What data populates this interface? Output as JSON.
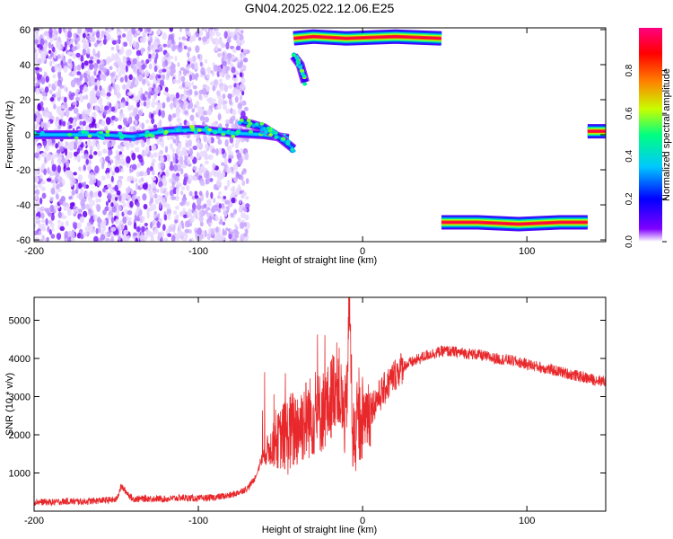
{
  "title": "GN04.2025.022.12.06.E25",
  "chart_data": [
    {
      "type": "heatmap",
      "xlabel": "Height of straight line (km)",
      "ylabel": "Frequency (Hz)",
      "xlim": [
        -200,
        148
      ],
      "ylim": [
        -61,
        61
      ],
      "xticks": [
        -200,
        -100,
        0,
        100
      ],
      "yticks": [
        -60,
        -40,
        -20,
        0,
        20,
        40,
        60
      ],
      "colorbar": {
        "label": "Normalized spectral amplitude",
        "range": [
          0,
          1
        ],
        "ticks": [
          0.0,
          0.2,
          0.4,
          0.6,
          0.8
        ],
        "colors": [
          "#ffffff",
          "#8000ff",
          "#0000ff",
          "#00c8ff",
          "#00ff80",
          "#c8ff00",
          "#ff8000",
          "#ff0000",
          "#ff0080"
        ]
      },
      "noise_region": {
        "x_range": [
          -200,
          -70
        ],
        "freq_range": [
          -61,
          61
        ],
        "typical_amplitude": 0.08
      },
      "tracks": [
        {
          "x": [
            -200,
            -160,
            -140,
            -120,
            -100,
            -80,
            -60,
            -45
          ],
          "freq": [
            0,
            0,
            -1,
            2,
            3,
            1,
            0,
            -2
          ],
          "peak_amplitude": 0.35
        },
        {
          "x": [
            -75,
            -60,
            -50,
            -42
          ],
          "freq": [
            8,
            4,
            -2,
            -8
          ],
          "peak_amplitude": 0.3
        },
        {
          "x": [
            -42,
            -30,
            -10,
            20,
            48
          ],
          "freq": [
            55,
            56,
            55,
            56,
            55
          ],
          "peak_amplitude": 1.0
        },
        {
          "x": [
            -42,
            -38,
            -35
          ],
          "freq": [
            45,
            40,
            30
          ],
          "peak_amplitude": 0.15
        },
        {
          "x": [
            48,
            70,
            95,
            120,
            137
          ],
          "freq": [
            -50,
            -50,
            -51,
            -50,
            -50
          ],
          "peak_amplitude": 1.0
        },
        {
          "x": [
            137,
            148
          ],
          "freq": [
            2,
            2
          ],
          "peak_amplitude": 0.9
        }
      ]
    },
    {
      "type": "line",
      "xlabel": "Height of straight line (km)",
      "ylabel": "SNR (10 * v/v)",
      "xlim": [
        -200,
        148
      ],
      "ylim": [
        0,
        5600
      ],
      "xticks": [
        -200,
        -100,
        0,
        100
      ],
      "yticks": [
        1000,
        2000,
        3000,
        4000,
        5000
      ],
      "color": "#e8282b",
      "series": [
        {
          "x": [
            -200,
            -190,
            -180,
            -170,
            -160,
            -150,
            -147,
            -140,
            -130,
            -120,
            -110,
            -100,
            -90,
            -80,
            -75,
            -70,
            -65,
            -62,
            -58,
            -55,
            -50,
            -45,
            -40,
            -35,
            -30,
            -25,
            -20,
            -18,
            -15,
            -12,
            -10,
            -8,
            -6,
            -4,
            -2,
            0,
            5,
            10,
            15,
            20,
            25,
            30,
            35,
            40,
            45,
            50,
            60,
            70,
            80,
            90,
            100,
            110,
            120,
            130,
            140,
            148
          ],
          "y": [
            250,
            230,
            260,
            250,
            280,
            300,
            650,
            320,
            330,
            320,
            350,
            330,
            360,
            420,
            500,
            600,
            900,
            1300,
            1600,
            1700,
            1900,
            2000,
            2200,
            2400,
            2500,
            2600,
            2800,
            3200,
            3400,
            2600,
            2400,
            5600,
            1900,
            2000,
            2300,
            2500,
            2700,
            3000,
            3300,
            3600,
            3800,
            3900,
            4000,
            4100,
            4150,
            4200,
            4150,
            4100,
            4000,
            3950,
            3850,
            3750,
            3650,
            3550,
            3450,
            3400
          ]
        }
      ]
    }
  ]
}
